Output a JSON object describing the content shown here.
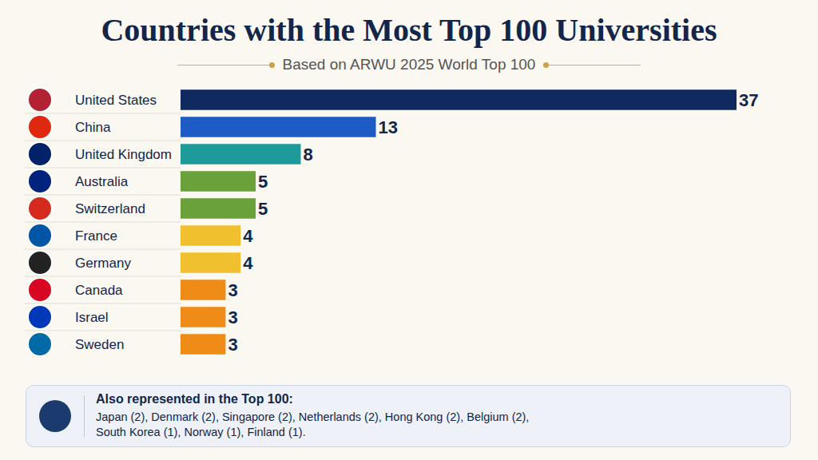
{
  "chart_data": {
    "type": "bar",
    "orientation": "horizontal",
    "title": "Countries with the Most Top 100 Universities",
    "subtitle": "Based on ARWU 2025 World Top 100",
    "categories": [
      "United States",
      "China",
      "United Kingdom",
      "Australia",
      "Switzerland",
      "France",
      "Germany",
      "Canada",
      "Israel",
      "Sweden"
    ],
    "values": [
      37,
      13,
      8,
      5,
      5,
      4,
      4,
      3,
      3,
      3
    ],
    "colors": [
      "#0f2a5e",
      "#1f5bc4",
      "#1f9a9a",
      "#6aa13a",
      "#6aa13a",
      "#f0c02e",
      "#f0c02e",
      "#ef8c18",
      "#ef8c18",
      "#ef8c18"
    ],
    "xlim": [
      0,
      37
    ],
    "data_labels": true,
    "tick_labels": "y",
    "grid": false,
    "footer": {
      "title": "Also represented in the Top 100:",
      "lines": [
        "Japan (2), Denmark (2), Singapore (2), Netherlands (2), Hong Kong (2), Belgium (2),",
        "South Korea (1), Norway (1), Finland (1)."
      ]
    }
  }
}
